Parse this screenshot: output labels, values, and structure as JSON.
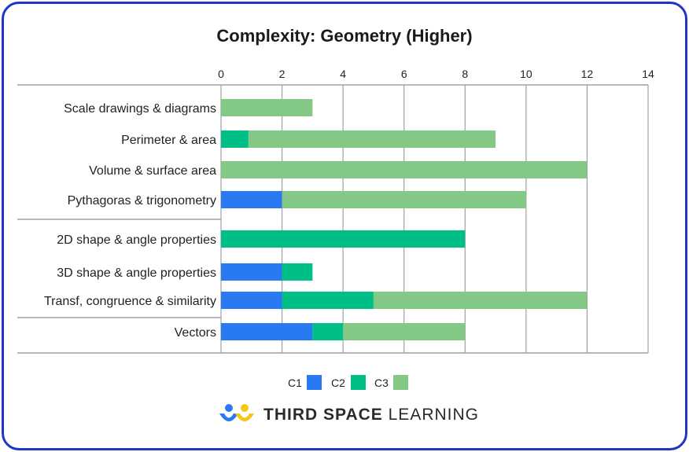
{
  "chart_data": {
    "type": "bar",
    "orientation": "horizontal",
    "stacked": true,
    "title": "Complexity: Geometry (Higher)",
    "categories": [
      "Scale drawings & diagrams",
      "Perimeter & area",
      "Volume & surface area",
      "Pythagoras & trigonometry",
      "2D shape & angle properties",
      "3D shape & angle properties",
      "Transf, congruence & similarity",
      "Vectors"
    ],
    "series": [
      {
        "name": "C1",
        "color": "#2979f2",
        "values": [
          0,
          0,
          0,
          2,
          0,
          2,
          2,
          3
        ]
      },
      {
        "name": "C2",
        "color": "#00bf86",
        "values": [
          0,
          0.9,
          0,
          0,
          8,
          1,
          3,
          1
        ]
      },
      {
        "name": "C3",
        "color": "#84c886",
        "values": [
          3,
          8.1,
          12,
          8,
          0,
          0,
          7,
          4
        ]
      }
    ],
    "xlim": [
      0,
      14
    ],
    "xticks": [
      "0",
      "2",
      "4",
      "6",
      "8",
      "10",
      "12",
      "14"
    ],
    "x_axis_position": "top",
    "grid": true,
    "legend_position": "bottom",
    "xlabel": "",
    "ylabel": ""
  },
  "footer": {
    "brand_bold": "THIRD SPACE",
    "brand_light": " LEARNING",
    "logo_icon": "third-space-learning-logo-icon"
  },
  "colors": {
    "border": "#1f35c8",
    "grid": "#a0a0a0"
  }
}
